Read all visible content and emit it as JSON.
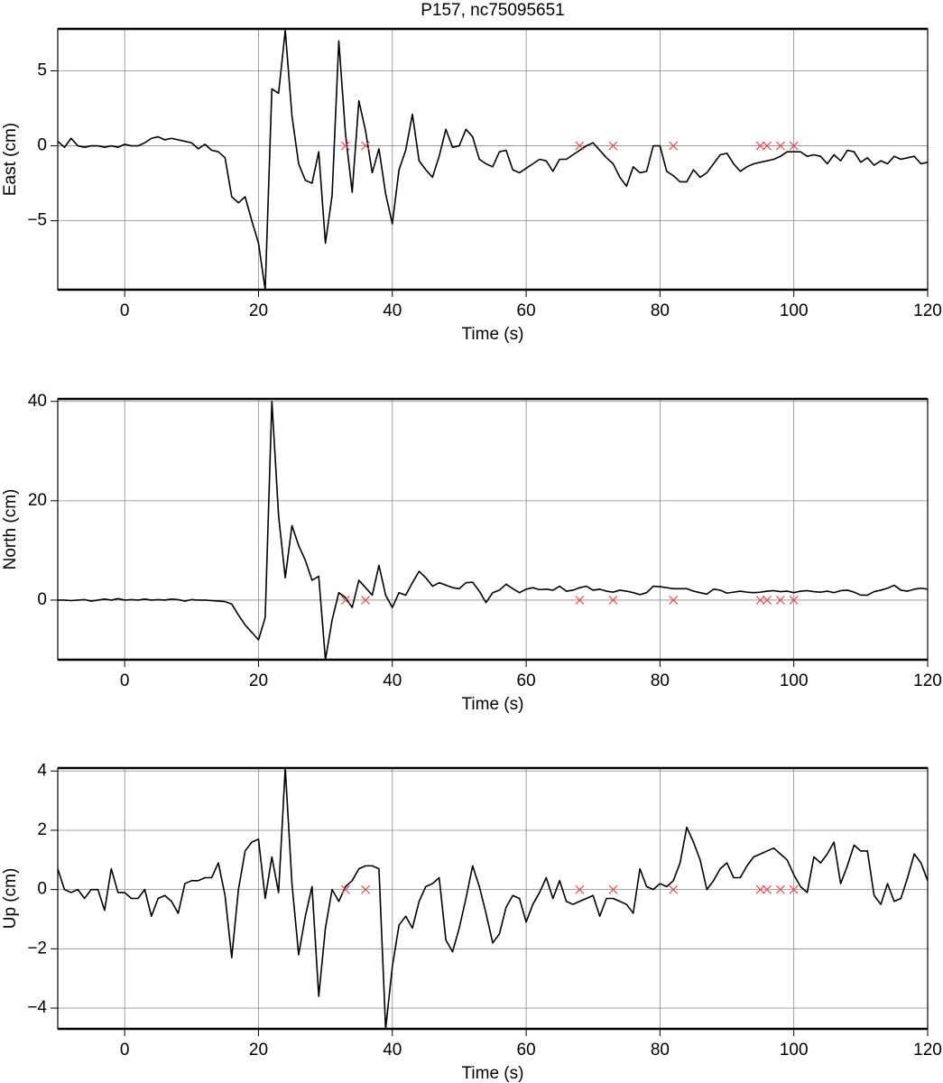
{
  "chart_data": [
    {
      "type": "line",
      "title": "P157, nc75095651",
      "xlabel": "Time (s)",
      "ylabel": "East (cm)",
      "x": [
        -10,
        -9,
        -8,
        -7,
        -6,
        -5,
        -4,
        -3,
        -2,
        -1,
        0,
        1,
        2,
        3,
        4,
        5,
        6,
        7,
        8,
        9,
        10,
        11,
        12,
        13,
        14,
        15,
        16,
        17,
        18,
        19,
        20,
        21,
        22,
        23,
        24,
        25,
        26,
        27,
        28,
        29,
        30,
        31,
        32,
        33,
        34,
        35,
        36,
        37,
        38,
        39,
        40,
        41,
        42,
        43,
        44,
        45,
        46,
        47,
        48,
        49,
        50,
        51,
        52,
        53,
        54,
        55,
        56,
        57,
        58,
        59,
        60,
        61,
        62,
        63,
        64,
        65,
        66,
        67,
        68,
        69,
        70,
        71,
        72,
        73,
        74,
        75,
        76,
        77,
        78,
        79,
        80,
        81,
        82,
        83,
        84,
        85,
        86,
        87,
        88,
        89,
        90,
        91,
        92,
        93,
        94,
        95,
        96,
        97,
        98,
        99,
        100,
        101,
        102,
        103,
        104,
        105,
        106,
        107,
        108,
        109,
        110,
        111,
        112,
        113,
        114,
        115,
        116,
        117,
        118,
        119,
        120
      ],
      "series": [
        {
          "color": "#000000",
          "values": [
            0.3,
            -0.1,
            0.5,
            0,
            -0.1,
            0,
            0,
            -0.1,
            0,
            -0.1,
            0.1,
            0,
            0,
            0.2,
            0.5,
            0.6,
            0.4,
            0.5,
            0.4,
            0.3,
            0.2,
            -0.2,
            0.1,
            -0.3,
            -0.4,
            -0.8,
            -3.4,
            -3.8,
            -3.4,
            -5,
            -6.5,
            -9.6,
            3.8,
            3.5,
            7.7,
            2,
            -1.2,
            -2.3,
            -2.5,
            -0.4,
            -6.5,
            -3.3,
            7,
            0.8,
            -3.1,
            3,
            1,
            -1.8,
            -0.2,
            -3.2,
            -5.2,
            -1.6,
            -0.3,
            2.1,
            -1,
            -1.6,
            -2.1,
            -0.7,
            1.1,
            -0.1,
            0,
            1.1,
            0.6,
            -0.9,
            -1.2,
            -1.4,
            -0.4,
            -0.3,
            -1.6,
            -1.8,
            -1.5,
            -1.2,
            -0.9,
            -1,
            -1.7,
            -0.9,
            -0.9,
            -0.6,
            -0.3,
            0,
            0.2,
            -0.3,
            -0.8,
            -1.2,
            -2.1,
            -2.7,
            -1.4,
            -1.8,
            -1.7,
            0,
            0,
            -1.7,
            -2,
            -2.4,
            -2.4,
            -1.6,
            -2.1,
            -1.8,
            -1.2,
            -0.6,
            -0.5,
            -1.2,
            -1.7,
            -1.4,
            -1.2,
            -1.1,
            -1,
            -0.9,
            -0.7,
            -0.4,
            -0.4,
            -0.4,
            -0.7,
            -0.6,
            -0.7,
            -1.2,
            -0.6,
            -1,
            -0.3,
            -0.4,
            -1.1,
            -0.8,
            -1.3,
            -1,
            -1.2,
            -0.7,
            -0.9,
            -0.8,
            -0.7,
            -1.2,
            -1.1
          ]
        },
        {
          "color": "#e05050",
          "marker": "x",
          "x": [
            33,
            36,
            68,
            73,
            82,
            95,
            96,
            98,
            100
          ],
          "values": [
            0,
            0,
            0,
            0,
            0,
            0,
            0,
            0,
            0
          ]
        }
      ],
      "xlim": [
        -10,
        120
      ],
      "xticks": [
        0,
        20,
        40,
        60,
        80,
        100,
        120
      ],
      "ylim": [
        -9.6,
        7.8
      ],
      "yticks": [
        {
          "value": -5,
          "label": "−5"
        },
        0,
        5
      ],
      "grid": true
    },
    {
      "type": "line",
      "xlabel": "Time (s)",
      "ylabel": "North (cm)",
      "x": [
        -10,
        -9,
        -8,
        -7,
        -6,
        -5,
        -4,
        -3,
        -2,
        -1,
        0,
        1,
        2,
        3,
        4,
        5,
        6,
        7,
        8,
        9,
        10,
        11,
        12,
        13,
        14,
        15,
        16,
        17,
        18,
        19,
        20,
        21,
        22,
        23,
        24,
        25,
        26,
        27,
        28,
        29,
        30,
        31,
        32,
        33,
        34,
        35,
        36,
        37,
        38,
        39,
        40,
        41,
        42,
        43,
        44,
        45,
        46,
        47,
        48,
        49,
        50,
        51,
        52,
        53,
        54,
        55,
        56,
        57,
        58,
        59,
        60,
        61,
        62,
        63,
        64,
        65,
        66,
        67,
        68,
        69,
        70,
        71,
        72,
        73,
        74,
        75,
        76,
        77,
        78,
        79,
        80,
        81,
        82,
        83,
        84,
        85,
        86,
        87,
        88,
        89,
        90,
        91,
        92,
        93,
        94,
        95,
        96,
        97,
        98,
        99,
        100,
        101,
        102,
        103,
        104,
        105,
        106,
        107,
        108,
        109,
        110,
        111,
        112,
        113,
        114,
        115,
        116,
        117,
        118,
        119,
        120
      ],
      "series": [
        {
          "color": "#000000",
          "values": [
            0,
            0,
            -0.1,
            0,
            0.1,
            -0.2,
            0,
            0.2,
            0,
            0.3,
            0,
            0.1,
            0,
            0.2,
            0,
            0.1,
            0,
            0.2,
            0.1,
            -0.2,
            0.1,
            0,
            0,
            -0.1,
            -0.2,
            -0.3,
            -0.8,
            -3,
            -5,
            -6.5,
            -8,
            -3.5,
            40,
            17,
            4.5,
            15,
            11,
            8,
            4,
            4.8,
            -12,
            -4,
            1.5,
            0.5,
            -1.5,
            4,
            2.5,
            1,
            7,
            1,
            -1.5,
            1.5,
            1,
            3.5,
            5.8,
            4.5,
            2.8,
            3.5,
            3,
            2.5,
            2.3,
            3.5,
            3.6,
            1.8,
            -0.5,
            1.5,
            2,
            3.2,
            2.3,
            1.5,
            2.2,
            2.5,
            2.1,
            2.2,
            2,
            2.8,
            1.8,
            2,
            2.5,
            2.8,
            2,
            2.2,
            1.8,
            1.6,
            2,
            1.8,
            1.5,
            1.1,
            1.5,
            2.8,
            2.7,
            2.5,
            2.3,
            2.3,
            2.3,
            1.8,
            1.5,
            1.2,
            2.2,
            2,
            1.4,
            1.6,
            1.8,
            1.6,
            1.5,
            1.6,
            1.8,
            1.9,
            1.7,
            1.8,
            1.5,
            1.8,
            1.9,
            1.7,
            1.6,
            1.8,
            1.5,
            1.9,
            2,
            1.6,
            1,
            1,
            1.7,
            2,
            2.4,
            3,
            2,
            1.8,
            2.2,
            2.4,
            2.2
          ]
        },
        {
          "color": "#e05050",
          "marker": "x",
          "x": [
            33,
            36,
            68,
            73,
            82,
            95,
            96,
            98,
            100
          ],
          "values": [
            0,
            0,
            0,
            0,
            0,
            0,
            0,
            0,
            0
          ]
        }
      ],
      "xlim": [
        -10,
        120
      ],
      "xticks": [
        0,
        20,
        40,
        60,
        80,
        100,
        120
      ],
      "ylim": [
        -12,
        40.5
      ],
      "yticks": [
        0,
        20,
        40
      ],
      "grid": true
    },
    {
      "type": "line",
      "xlabel": "Time (s)",
      "ylabel": "Up (cm)",
      "x": [
        -10,
        -9,
        -8,
        -7,
        -6,
        -5,
        -4,
        -3,
        -2,
        -1,
        0,
        1,
        2,
        3,
        4,
        5,
        6,
        7,
        8,
        9,
        10,
        11,
        12,
        13,
        14,
        15,
        16,
        17,
        18,
        19,
        20,
        21,
        22,
        23,
        24,
        25,
        26,
        27,
        28,
        29,
        30,
        31,
        32,
        33,
        34,
        35,
        36,
        37,
        38,
        39,
        40,
        41,
        42,
        43,
        44,
        45,
        46,
        47,
        48,
        49,
        50,
        51,
        52,
        53,
        54,
        55,
        56,
        57,
        58,
        59,
        60,
        61,
        62,
        63,
        64,
        65,
        66,
        67,
        68,
        69,
        70,
        71,
        72,
        73,
        74,
        75,
        76,
        77,
        78,
        79,
        80,
        81,
        82,
        83,
        84,
        85,
        86,
        87,
        88,
        89,
        90,
        91,
        92,
        93,
        94,
        95,
        96,
        97,
        98,
        99,
        100,
        101,
        102,
        103,
        104,
        105,
        106,
        107,
        108,
        109,
        110,
        111,
        112,
        113,
        114,
        115,
        116,
        117,
        118,
        119,
        120
      ],
      "series": [
        {
          "color": "#000000",
          "values": [
            0.7,
            0,
            -0.1,
            0,
            -0.3,
            0,
            0,
            -0.7,
            0.7,
            -0.1,
            -0.1,
            -0.3,
            -0.3,
            0,
            -0.9,
            -0.3,
            -0.2,
            -0.4,
            -0.8,
            0.2,
            0.3,
            0.3,
            0.4,
            0.4,
            0.9,
            -0.2,
            -2.3,
            0,
            1.3,
            1.6,
            1.7,
            -0.3,
            1.1,
            -0.1,
            4.1,
            0.2,
            -2.2,
            -0.9,
            0.1,
            -3.6,
            -1.3,
            0,
            -0.4,
            0.1,
            0.3,
            0.7,
            0.8,
            0.8,
            0.7,
            -4.7,
            -2.6,
            -1.2,
            -0.9,
            -1.3,
            -0.4,
            0.1,
            0.2,
            0.4,
            -1.7,
            -2.1,
            -1.3,
            -0.3,
            0.8,
            0.1,
            -0.8,
            -1.8,
            -1.5,
            -0.6,
            -0.2,
            -0.3,
            -1.1,
            -0.5,
            -0.1,
            0.4,
            -0.3,
            0.3,
            -0.4,
            -0.5,
            -0.4,
            -0.3,
            -0.2,
            -0.9,
            -0.3,
            -0.3,
            -0.4,
            -0.5,
            -0.8,
            0.7,
            0.1,
            0,
            0.2,
            0.1,
            0.3,
            0.9,
            2.1,
            1.6,
            1,
            0,
            0.3,
            0.7,
            0.9,
            0.4,
            0.4,
            0.8,
            1.1,
            1.2,
            1.3,
            1.4,
            1.2,
            1,
            0.5,
            0.1,
            -0.1,
            1.1,
            0.9,
            1.2,
            1.6,
            0.2,
            0.8,
            1.5,
            1.3,
            1.3,
            -0.2,
            -0.5,
            0.2,
            -0.4,
            -0.3,
            0.4,
            1.2,
            0.9,
            0.3
          ]
        },
        {
          "color": "#e05050",
          "marker": "x",
          "x": [
            33,
            36,
            68,
            73,
            82,
            95,
            96,
            98,
            100
          ],
          "values": [
            0,
            0,
            0,
            0,
            0,
            0,
            0,
            0,
            0
          ]
        }
      ],
      "xlim": [
        -10,
        120
      ],
      "xticks": [
        0,
        20,
        40,
        60,
        80,
        100,
        120
      ],
      "ylim": [
        -4.7,
        4.1
      ],
      "yticks": [
        {
          "value": -4,
          "label": "−4"
        },
        {
          "value": -2,
          "label": "−2"
        },
        0,
        2,
        4
      ],
      "grid": true
    }
  ]
}
